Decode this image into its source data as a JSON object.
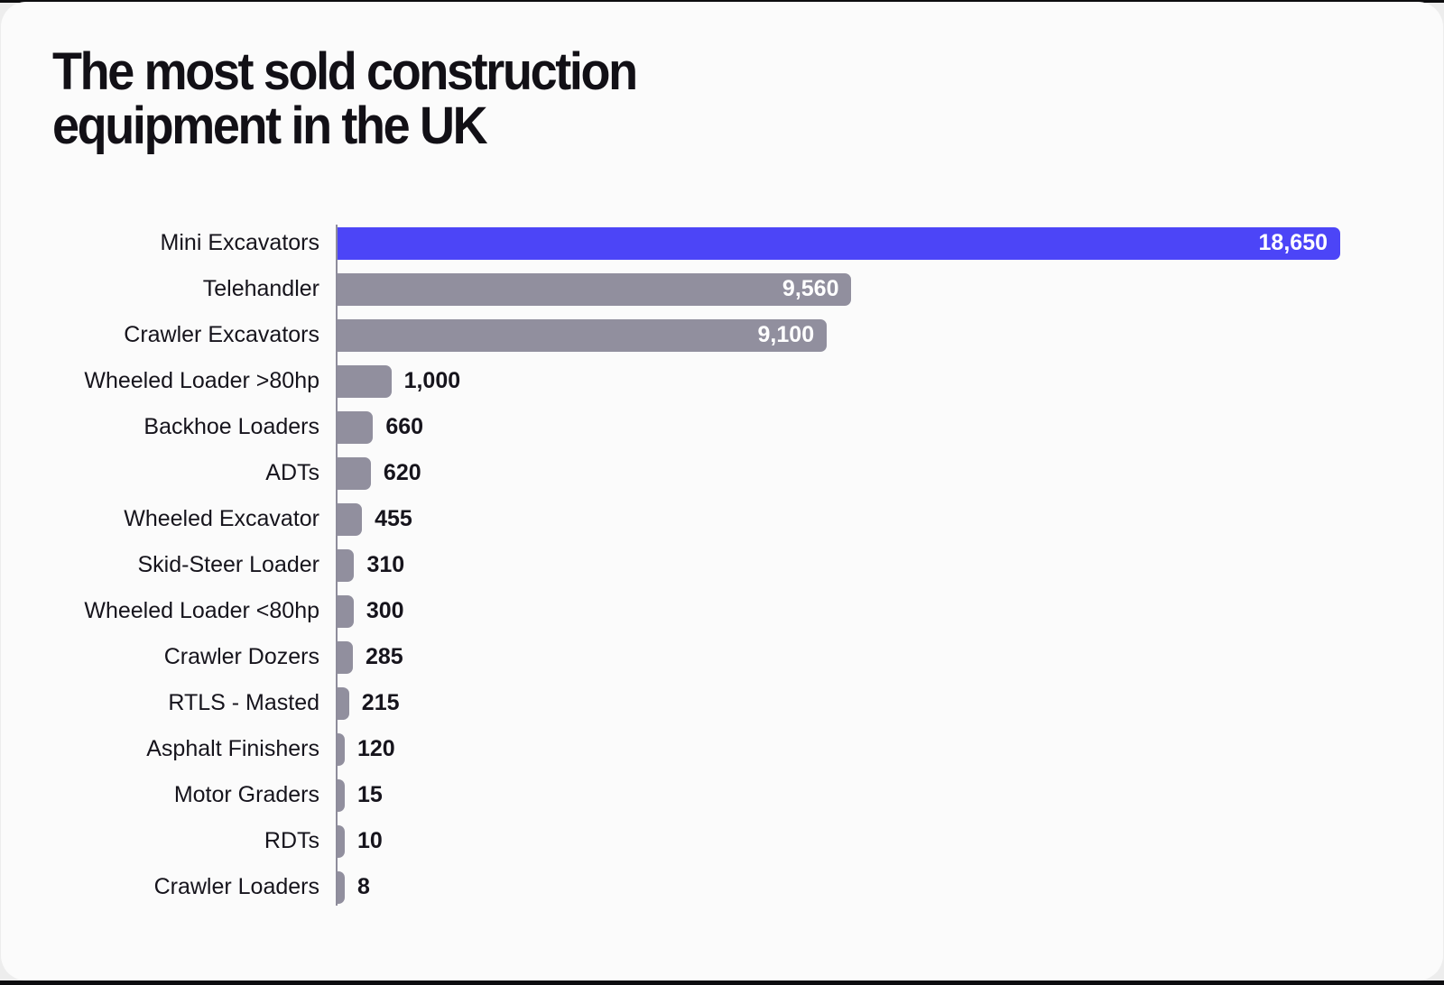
{
  "card": {
    "title_lines": [
      "The most sold construction",
      "equipment in the UK"
    ]
  },
  "chart_data": {
    "type": "bar",
    "orientation": "horizontal",
    "title": "The most sold construction equipment in the UK",
    "categories": [
      "Mini Excavators",
      "Telehandler",
      "Crawler Excavators",
      "Wheeled Loader >80hp",
      "Backhoe Loaders",
      "ADTs",
      "Wheeled Excavator",
      "Skid-Steer Loader",
      "Wheeled Loader <80hp",
      "Crawler Dozers",
      "RTLS - Masted",
      "Asphalt Finishers",
      "Motor Graders",
      "RDTs",
      "Crawler Loaders"
    ],
    "values": [
      18650,
      9560,
      9100,
      1000,
      660,
      620,
      455,
      310,
      300,
      285,
      215,
      120,
      15,
      10,
      8
    ],
    "value_labels": [
      "18,650",
      "9,560",
      "9,100",
      "1,000",
      "660",
      "620",
      "455",
      "310",
      "300",
      "285",
      "215",
      "120",
      "15",
      "10",
      "8"
    ],
    "xlim": [
      0,
      18650
    ],
    "highlight_index": 0,
    "label_inside_threshold": 5000,
    "grid": false,
    "legend": false,
    "colors": {
      "highlight": "#4c45f7",
      "default": "#918f9e",
      "axis": "#8e8c9b",
      "label_inside": "#ffffff",
      "label_outside": "#16141c"
    }
  }
}
